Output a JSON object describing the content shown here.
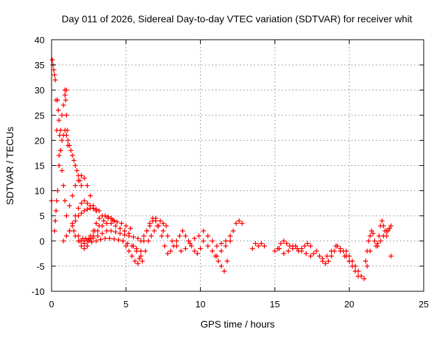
{
  "chart_data": {
    "type": "scatter",
    "title": "Day 011 of 2026, Sidereal Day-to-day VTEC variation (SDTVAR) for receiver whit",
    "xlabel": "GPS time / hours",
    "ylabel": "SDTVAR / TECUs",
    "xlim": [
      0,
      25
    ],
    "ylim": [
      -10,
      40
    ],
    "xticks": [
      "0",
      "5",
      "10",
      "15",
      "20",
      "25"
    ],
    "yticks": [
      "-10",
      "-5",
      "0",
      "5",
      "10",
      "15",
      "20",
      "25",
      "30",
      "35",
      "40"
    ],
    "grid": true,
    "marker": "+",
    "colors": {
      "series": "#ff0000",
      "grid": "#a0a0a0",
      "axis": "#000000"
    },
    "series": [
      {
        "name": "SDTVAR",
        "x": [
          0.0,
          0.05,
          0.1,
          0.15,
          0.2,
          0.25,
          0.3,
          0.35,
          0.2,
          0.25,
          0.3,
          0.35,
          0.4,
          0.5,
          0.6,
          0.7,
          0.8,
          0.9,
          1.0,
          0.4,
          0.45,
          0.5,
          0.55,
          0.6,
          0.7,
          0.8,
          0.9,
          0.5,
          0.6,
          0.7,
          0.8,
          0.9,
          1.0,
          1.1,
          0.9,
          0.95,
          1.0,
          1.05,
          1.1,
          1.2,
          1.3,
          1.4,
          1.5,
          1.6,
          1.7,
          1.8,
          1.9,
          2.0,
          1.0,
          1.2,
          1.4,
          1.6,
          1.8,
          2.0,
          2.2,
          2.4,
          2.6,
          2.8,
          3.0,
          1.2,
          1.4,
          1.6,
          1.8,
          2.0,
          2.2,
          2.4,
          2.6,
          2.8,
          3.0,
          0.8,
          1.0,
          1.2,
          1.4,
          1.6,
          1.8,
          2.0,
          2.2,
          2.4,
          2.6,
          2.8,
          3.0,
          3.2,
          1.8,
          2.0,
          2.2,
          2.4,
          2.6,
          2.8,
          3.0,
          3.2,
          3.4,
          3.6,
          3.8,
          4.0,
          4.2,
          2.0,
          2.3,
          2.6,
          2.9,
          3.2,
          3.5,
          3.8,
          4.1,
          4.4,
          4.7,
          5.0,
          5.3,
          1.6,
          1.9,
          2.2,
          2.5,
          2.8,
          3.1,
          3.4,
          3.7,
          4.0,
          4.3,
          4.6,
          4.9,
          5.2,
          2.2,
          2.5,
          2.8,
          3.1,
          3.4,
          3.7,
          4.0,
          4.3,
          4.6,
          4.9,
          5.2,
          5.5,
          5.8,
          1.5,
          1.8,
          2.1,
          2.4,
          2.7,
          3.0,
          3.3,
          3.6,
          3.9,
          4.2,
          4.5,
          4.8,
          5.1,
          5.4,
          5.7,
          6.0,
          4.8,
          5.0,
          5.2,
          5.4,
          5.6,
          5.8,
          6.0,
          6.2,
          6.4,
          6.6,
          6.8,
          7.0,
          5.5,
          5.7,
          5.9,
          6.1,
          6.3,
          6.5,
          6.7,
          6.9,
          7.1,
          7.3,
          7.5,
          7.7,
          6.0,
          6.2,
          6.4,
          6.6,
          6.8,
          7.0,
          7.2,
          7.4,
          7.6,
          7.8,
          8.0,
          8.2,
          8.4,
          8.6,
          8.8,
          9.0,
          9.2,
          9.4,
          9.6,
          9.8,
          10.0,
          7.5,
          7.8,
          8.1,
          8.4,
          8.7,
          9.0,
          9.3,
          9.6,
          9.9,
          10.2,
          10.5,
          10.8,
          11.1,
          11.4,
          11.7,
          12.0,
          10.2,
          10.5,
          10.8,
          11.1,
          11.4,
          11.7,
          12.0,
          12.2,
          12.4,
          12.6,
          12.8,
          11.0,
          11.2,
          11.4,
          11.6,
          11.8,
          13.5,
          13.7,
          13.9,
          14.1,
          14.3,
          15.0,
          15.2,
          15.4,
          15.6,
          15.8,
          16.0,
          16.2,
          16.4,
          16.6,
          16.8,
          17.0,
          17.2,
          17.4,
          15.3,
          15.6,
          15.9,
          16.2,
          16.5,
          16.8,
          17.1,
          17.4,
          17.6,
          17.8,
          18.0,
          18.2,
          18.4,
          18.6,
          18.8,
          19.0,
          19.2,
          19.4,
          19.6,
          19.8,
          20.0,
          18.2,
          18.5,
          18.8,
          19.1,
          19.4,
          19.7,
          20.0,
          20.2,
          20.4,
          20.6,
          19.8,
          20.0,
          20.2,
          20.4,
          20.6,
          20.8,
          21.0,
          21.2,
          21.4,
          21.1,
          21.2,
          21.3,
          21.4,
          21.5,
          21.6,
          21.7,
          21.8,
          21.9,
          22.0,
          22.1,
          22.2,
          22.3,
          22.4,
          22.5,
          22.6,
          22.7,
          22.8,
          21.9,
          22.1,
          22.3,
          22.5,
          22.7,
          22.8
        ],
        "y": [
          8.0,
          36.0,
          35.0,
          34.0,
          33.0,
          32.0,
          28.0,
          22.0,
          2.0,
          4.0,
          6.0,
          8.0,
          10.0,
          17.0,
          22.0,
          25.0,
          27.0,
          29.0,
          30.0,
          28.0,
          26.0,
          24.0,
          21.0,
          18.0,
          14.0,
          11.0,
          8.0,
          15.0,
          18.0,
          20.0,
          21.0,
          22.0,
          21.0,
          19.0,
          30.0,
          28.0,
          25.0,
          22.0,
          20.0,
          19.0,
          18.0,
          17.0,
          16.0,
          15.0,
          14.0,
          13.0,
          12.0,
          11.0,
          5.0,
          7.0,
          9.0,
          11.0,
          12.0,
          13.0,
          12.5,
          11.0,
          9.0,
          7.0,
          6.0,
          2.0,
          3.5,
          5.0,
          6.5,
          7.5,
          8.0,
          7.5,
          7.0,
          6.5,
          6.0,
          0.0,
          1.0,
          2.0,
          3.0,
          4.0,
          5.0,
          5.5,
          6.0,
          6.3,
          6.5,
          6.5,
          6.3,
          6.0,
          0.0,
          -1.0,
          -1.5,
          -1.0,
          0.5,
          2.0,
          3.5,
          4.5,
          5.0,
          5.0,
          4.8,
          4.5,
          4.0,
          0.0,
          0.5,
          1.0,
          2.0,
          3.0,
          4.0,
          4.5,
          4.2,
          3.8,
          3.5,
          3.0,
          2.5,
          1.0,
          0.0,
          -0.5,
          0.0,
          1.0,
          2.0,
          3.0,
          3.5,
          3.5,
          3.0,
          2.5,
          2.0,
          1.5,
          0.0,
          0.3,
          0.6,
          1.0,
          1.5,
          2.0,
          2.0,
          1.8,
          1.5,
          1.2,
          1.0,
          0.8,
          0.5,
          2.0,
          1.0,
          0.5,
          0.0,
          -0.2,
          0.0,
          0.3,
          0.5,
          0.5,
          0.4,
          0.2,
          0.0,
          -0.5,
          -1.0,
          -1.5,
          -2.0,
          0.0,
          -1.0,
          -2.0,
          -3.0,
          -4.0,
          -4.5,
          -3.0,
          0.0,
          2.0,
          3.5,
          4.5,
          4.0,
          -1.0,
          -2.0,
          -3.5,
          -4.0,
          -2.0,
          0.0,
          1.0,
          2.0,
          3.0,
          4.0,
          3.5,
          3.0,
          0.0,
          1.0,
          2.0,
          3.0,
          4.0,
          4.5,
          3.0,
          1.0,
          -1.0,
          -2.5,
          -2.0,
          -1.0,
          0.0,
          1.0,
          2.0,
          1.0,
          0.0,
          -1.0,
          -2.0,
          -2.5,
          -1.5,
          2.0,
          1.0,
          0.0,
          -1.0,
          -2.0,
          -1.5,
          -0.5,
          0.5,
          1.0,
          2.0,
          1.0,
          0.0,
          -1.0,
          -0.5,
          0.0,
          1.0,
          0.0,
          -1.0,
          -2.0,
          -3.0,
          -2.0,
          -1.0,
          0.0,
          2.0,
          3.5,
          4.0,
          3.5,
          -3.0,
          -4.0,
          -5.0,
          -6.0,
          -4.0,
          -1.5,
          -0.5,
          -1.0,
          -0.5,
          -1.0,
          -2.0,
          -1.5,
          -0.5,
          0.0,
          -0.5,
          -1.0,
          -1.5,
          -1.0,
          -2.0,
          -1.5,
          -1.0,
          -0.5,
          -1.0,
          -1.5,
          -2.5,
          -2.0,
          -1.0,
          -1.5,
          -2.0,
          -2.5,
          -3.0,
          -2.5,
          -2.0,
          -3.0,
          -4.0,
          -4.5,
          -4.0,
          -3.0,
          -2.0,
          -1.0,
          -1.5,
          -2.0,
          -3.0,
          -4.0,
          -3.5,
          -3.0,
          -2.0,
          -1.0,
          -2.0,
          -3.0,
          -4.0,
          -5.0,
          -6.0,
          -7.0,
          -2.0,
          -3.0,
          -4.0,
          -5.0,
          -6.0,
          -7.0,
          -7.5,
          -5.0,
          -2.0,
          -4.0,
          -2.0,
          0.0,
          1.0,
          2.0,
          1.5,
          0.0,
          -1.0,
          -0.5,
          1.0,
          3.0,
          4.0,
          3.0,
          2.0,
          1.0,
          2.0,
          2.5,
          3.0,
          -1.0,
          0.0,
          1.0,
          2.0,
          2.5,
          -3.0
        ]
      }
    ]
  }
}
